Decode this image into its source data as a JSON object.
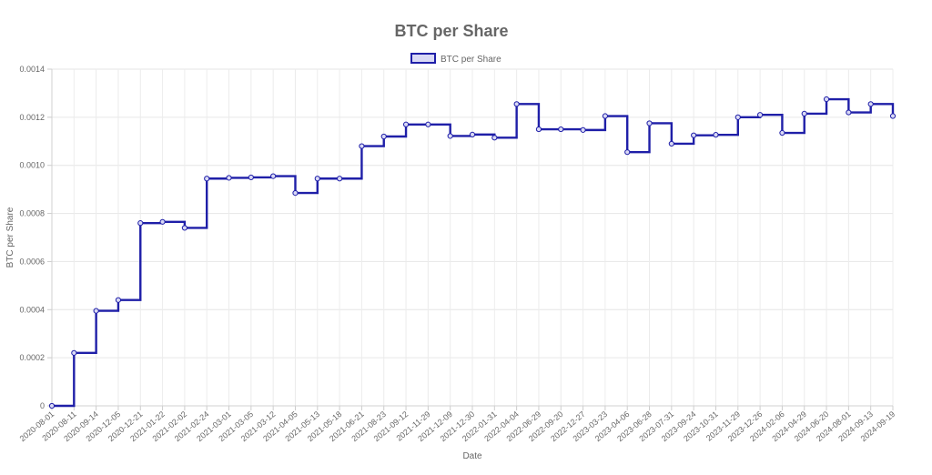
{
  "chart_data": {
    "type": "line",
    "step": true,
    "title": "BTC per Share",
    "xlabel": "Date",
    "ylabel": "BTC per Share",
    "ylim": [
      0,
      0.0014
    ],
    "yticks": [
      "0",
      "0.0002",
      "0.0004",
      "0.0006",
      "0.0008",
      "0.0010",
      "0.0012",
      "0.0014"
    ],
    "grid": true,
    "legend_position": "top-center",
    "x": [
      "2020-08-01",
      "2020-08-11",
      "2020-09-14",
      "2020-12-05",
      "2020-12-21",
      "2021-01-22",
      "2021-02-02",
      "2021-02-24",
      "2021-03-01",
      "2021-03-05",
      "2021-03-12",
      "2021-04-05",
      "2021-05-13",
      "2021-05-18",
      "2021-06-21",
      "2021-08-23",
      "2021-09-12",
      "2021-11-29",
      "2021-12-09",
      "2021-12-30",
      "2022-01-31",
      "2022-04-04",
      "2022-06-29",
      "2022-09-20",
      "2022-12-27",
      "2023-03-23",
      "2023-04-06",
      "2023-06-28",
      "2023-07-31",
      "2023-09-24",
      "2023-10-31",
      "2023-11-29",
      "2023-12-26",
      "2024-02-06",
      "2024-04-29",
      "2024-06-20",
      "2024-08-01",
      "2024-09-13",
      "2024-09-19"
    ],
    "series": [
      {
        "name": "BTC per Share",
        "color": "#1f1fa8",
        "fill": "#d9d9f5",
        "values": [
          0,
          0.00022,
          0.000395,
          0.00044,
          0.00076,
          0.000765,
          0.00074,
          0.000945,
          0.000948,
          0.00095,
          0.000955,
          0.000885,
          0.000945,
          0.000945,
          0.00108,
          0.00112,
          0.00117,
          0.00117,
          0.001122,
          0.001128,
          0.001115,
          0.001255,
          0.00115,
          0.00115,
          0.001147,
          0.001205,
          0.001055,
          0.001175,
          0.00109,
          0.001125,
          0.001127,
          0.0012,
          0.00121,
          0.001135,
          0.001215,
          0.001275,
          0.00122,
          0.001255,
          0.001205
        ]
      }
    ]
  }
}
